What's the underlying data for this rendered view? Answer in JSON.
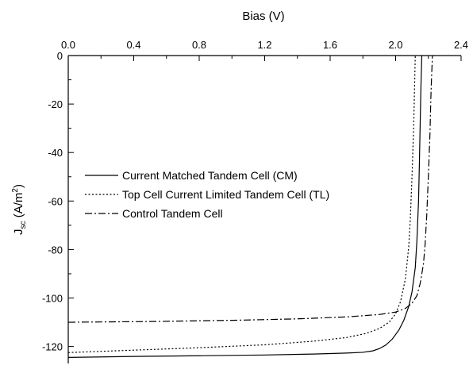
{
  "chart_data": {
    "type": "line",
    "title": "",
    "xlabel": "Bias (V)",
    "ylabel_main": "J",
    "ylabel_sub": "sc",
    "ylabel_unit": "(A/m",
    "ylabel_sup": "2",
    "ylabel_close": ")",
    "xlim": [
      0.0,
      2.4
    ],
    "ylim": [
      -127,
      0
    ],
    "x_axis_position": "top",
    "grid": false,
    "legend_position": "center-left",
    "x_ticks": [
      {
        "v": 0.0,
        "label": "0.0"
      },
      {
        "v": 0.4,
        "label": "0.4"
      },
      {
        "v": 0.8,
        "label": "0.8"
      },
      {
        "v": 1.2,
        "label": "1.2"
      },
      {
        "v": 1.6,
        "label": "1.6"
      },
      {
        "v": 2.0,
        "label": "2.0"
      },
      {
        "v": 2.4,
        "label": "2.4"
      }
    ],
    "y_ticks": [
      {
        "v": 0,
        "label": "0"
      },
      {
        "v": -20,
        "label": "-20"
      },
      {
        "v": -40,
        "label": "-40"
      },
      {
        "v": -60,
        "label": "-60"
      },
      {
        "v": -80,
        "label": "-80"
      },
      {
        "v": -100,
        "label": "-100"
      },
      {
        "v": -120,
        "label": "-120"
      }
    ],
    "series": [
      {
        "name": "Current Matched Tandem Cell (CM)",
        "dash": "solid",
        "points": [
          [
            0.0,
            -124.5
          ],
          [
            0.4,
            -124.1
          ],
          [
            0.8,
            -123.8
          ],
          [
            1.2,
            -123.5
          ],
          [
            1.5,
            -123.1
          ],
          [
            1.7,
            -122.7
          ],
          [
            1.8,
            -122.4
          ],
          [
            1.86,
            -121.8
          ],
          [
            1.9,
            -120.9
          ],
          [
            1.94,
            -119.4
          ],
          [
            1.98,
            -116.9
          ],
          [
            2.02,
            -113.2
          ],
          [
            2.05,
            -109.2
          ],
          [
            2.08,
            -103.5
          ],
          [
            2.1,
            -97.5
          ],
          [
            2.12,
            -87.5
          ],
          [
            2.13,
            -76.5
          ],
          [
            2.14,
            -60.0
          ],
          [
            2.145,
            -45.0
          ],
          [
            2.15,
            -28.0
          ],
          [
            2.155,
            -12.0
          ],
          [
            2.16,
            0.0
          ]
        ]
      },
      {
        "name": "Top Cell Current Limited Tandem Cell (TL)",
        "dash": "dotted",
        "points": [
          [
            0.0,
            -122.5
          ],
          [
            0.4,
            -121.5
          ],
          [
            0.8,
            -120.5
          ],
          [
            1.2,
            -119.3
          ],
          [
            1.5,
            -117.8
          ],
          [
            1.7,
            -116.3
          ],
          [
            1.82,
            -114.6
          ],
          [
            1.9,
            -112.6
          ],
          [
            1.96,
            -110.0
          ],
          [
            2.0,
            -106.5
          ],
          [
            2.03,
            -101.5
          ],
          [
            2.06,
            -92.0
          ],
          [
            2.08,
            -79.0
          ],
          [
            2.09,
            -67.0
          ],
          [
            2.1,
            -50.0
          ],
          [
            2.11,
            -30.0
          ],
          [
            2.115,
            -15.0
          ],
          [
            2.12,
            0.0
          ]
        ]
      },
      {
        "name": "Control Tandem Cell",
        "dash": "dashdot",
        "points": [
          [
            0.0,
            -110.0
          ],
          [
            0.5,
            -109.7
          ],
          [
            1.0,
            -109.2
          ],
          [
            1.4,
            -108.6
          ],
          [
            1.7,
            -107.8
          ],
          [
            1.9,
            -106.8
          ],
          [
            2.0,
            -105.8
          ],
          [
            2.06,
            -104.3
          ],
          [
            2.1,
            -102.2
          ],
          [
            2.13,
            -99.0
          ],
          [
            2.15,
            -94.0
          ],
          [
            2.17,
            -86.0
          ],
          [
            2.18,
            -78.0
          ],
          [
            2.19,
            -66.0
          ],
          [
            2.2,
            -50.0
          ],
          [
            2.21,
            -32.0
          ],
          [
            2.215,
            -18.0
          ],
          [
            2.22,
            -8.0
          ],
          [
            2.225,
            0.0
          ]
        ]
      }
    ]
  }
}
